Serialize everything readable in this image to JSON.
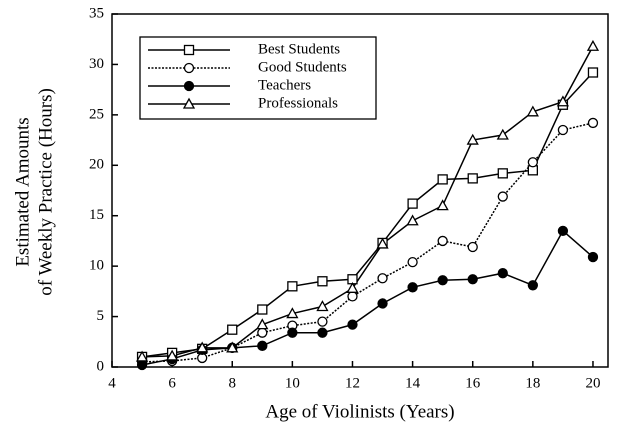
{
  "chart_data": {
    "type": "line",
    "x_label": "Age of Violinists (Years)",
    "y_label": [
      "Estimated Amounts",
      "of Weekly Practice (Hours)"
    ],
    "x": [
      5,
      6,
      7,
      8,
      9,
      10,
      11,
      12,
      13,
      14,
      15,
      16,
      17,
      18,
      19,
      20
    ],
    "series": [
      {
        "name": "Best Students",
        "color": "#000000",
        "marker": "square-open",
        "dash": "solid",
        "values": [
          1.0,
          1.4,
          1.8,
          3.7,
          5.7,
          8.0,
          8.5,
          8.7,
          12.3,
          16.2,
          18.6,
          18.7,
          19.2,
          19.5,
          26.0,
          29.2
        ]
      },
      {
        "name": "Good Students",
        "color": "#000000",
        "marker": "circle-open",
        "dash": "dotted",
        "values": [
          0.5,
          0.6,
          0.9,
          1.9,
          3.4,
          4.1,
          4.5,
          7.0,
          8.8,
          10.4,
          12.5,
          11.9,
          16.9,
          20.3,
          23.5,
          24.2
        ]
      },
      {
        "name": "Teachers",
        "color": "#000000",
        "marker": "circle-filled",
        "dash": "solid",
        "values": [
          0.2,
          0.8,
          1.7,
          1.9,
          2.1,
          3.4,
          3.4,
          4.2,
          6.3,
          7.9,
          8.6,
          8.7,
          9.3,
          8.1,
          13.5,
          10.9
        ]
      },
      {
        "name": "Professionals",
        "color": "#000000",
        "marker": "triangle-open",
        "dash": "solid",
        "values": [
          1.0,
          1.1,
          1.9,
          1.9,
          4.2,
          5.3,
          6.0,
          7.8,
          12.2,
          14.5,
          16.0,
          22.5,
          23.0,
          25.3,
          26.3,
          31.8
        ]
      }
    ],
    "xlim": [
      4,
      20.5
    ],
    "xticks": [
      4,
      6,
      8,
      10,
      12,
      14,
      16,
      18,
      20
    ],
    "ylim": [
      0,
      35
    ],
    "yticks": [
      0,
      5,
      10,
      15,
      20,
      25,
      30,
      35
    ],
    "grid": false,
    "legend": "upper left"
  }
}
